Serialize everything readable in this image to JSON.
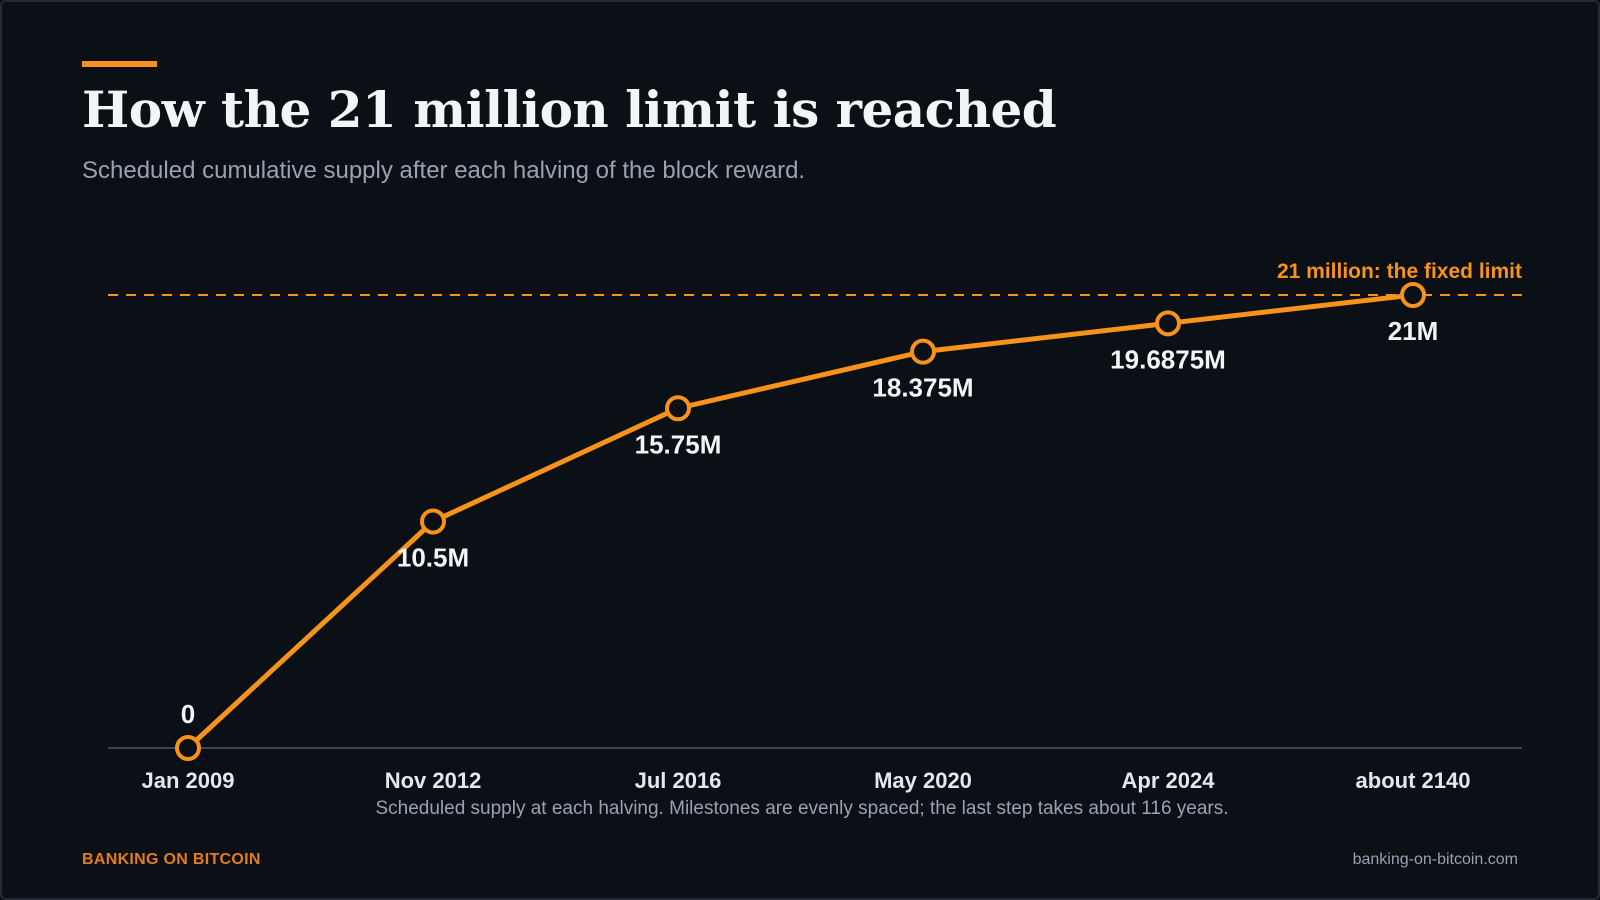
{
  "header": {
    "title": "How the 21 million limit is reached",
    "subtitle": "Scheduled cumulative supply after each halving of the block reward."
  },
  "footer": {
    "brand": "BANKING ON BITCOIN",
    "site": "banking-on-bitcoin.com"
  },
  "colors": {
    "accent": "#f7931a",
    "background": "#0b0f16",
    "text": "#f3f4f6",
    "muted": "#98a2b3",
    "axis": "#3b4452"
  },
  "chart_data": {
    "type": "line",
    "categories": [
      "Jan 2009",
      "Nov 2012",
      "Jul 2016",
      "May 2020",
      "Apr 2024",
      "about 2140"
    ],
    "series": [
      {
        "values": [
          0,
          10.5,
          15.75,
          18.375,
          19.6875,
          21
        ],
        "data_labels": [
          "0",
          "10.5M",
          "15.75M",
          "18.375M",
          "19.6875M",
          "21M"
        ]
      }
    ],
    "reference_line": {
      "value": 21,
      "label": "21 million: the fixed limit",
      "style": "dashed"
    },
    "ylim": [
      0,
      21
    ],
    "xlabel": "Scheduled supply at each halving. Milestones are evenly spaced; the last step takes about 116 years.",
    "ylabel": "",
    "grid": false,
    "legend": "none"
  }
}
